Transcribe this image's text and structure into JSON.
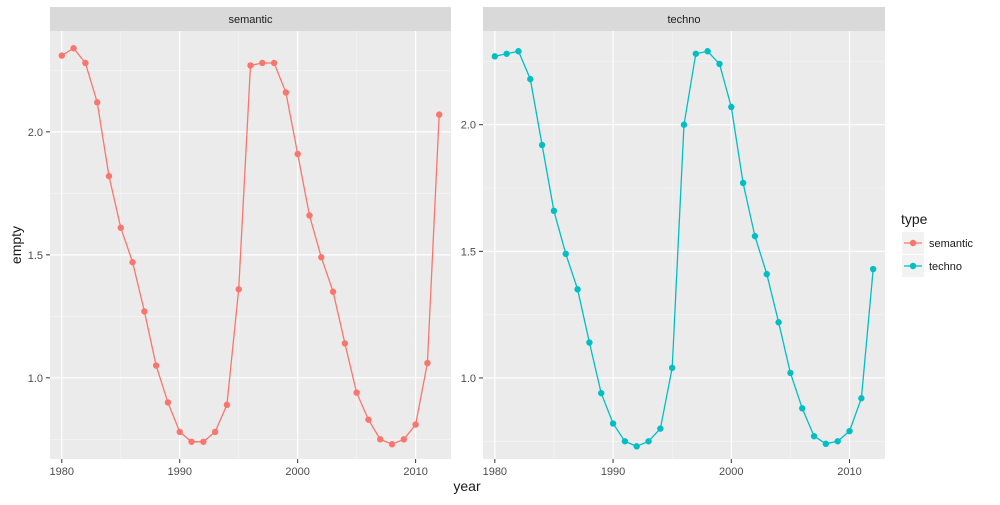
{
  "chart_data": {
    "type": "line",
    "facet": "type",
    "xlabel": "year",
    "ylabel": "empty",
    "xlim": [
      1979,
      2013
    ],
    "xticks": [
      1980,
      1990,
      2000,
      2010
    ],
    "grid": true,
    "legend": {
      "title": "type",
      "position": "right"
    },
    "panels": [
      {
        "title": "semantic",
        "color": "#F8766D",
        "ylim": [
          0.67,
          2.41
        ],
        "yticks": [
          1.0,
          1.5,
          2.0
        ],
        "x": [
          1980,
          1981,
          1982,
          1983,
          1984,
          1985,
          1986,
          1987,
          1988,
          1989,
          1990,
          1991,
          1992,
          1993,
          1994,
          1995,
          1996,
          1997,
          1998,
          1999,
          2000,
          2001,
          2002,
          2003,
          2004,
          2005,
          2006,
          2007,
          2008,
          2009,
          2010,
          2011,
          2012
        ],
        "values": [
          2.31,
          2.34,
          2.28,
          2.12,
          1.82,
          1.61,
          1.47,
          1.27,
          1.05,
          0.9,
          0.78,
          0.74,
          0.74,
          0.78,
          0.89,
          1.36,
          2.27,
          2.28,
          2.28,
          2.16,
          1.91,
          1.66,
          1.49,
          1.35,
          1.14,
          0.94,
          0.83,
          0.75,
          0.73,
          0.75,
          0.81,
          1.06,
          2.07
        ]
      },
      {
        "title": "techno",
        "color": "#00BFC4",
        "ylim": [
          0.68,
          2.37
        ],
        "yticks": [
          1.0,
          1.5,
          2.0
        ],
        "x": [
          1980,
          1981,
          1982,
          1983,
          1984,
          1985,
          1986,
          1987,
          1988,
          1989,
          1990,
          1991,
          1992,
          1993,
          1994,
          1995,
          1996,
          1997,
          1998,
          1999,
          2000,
          2001,
          2002,
          2003,
          2004,
          2005,
          2006,
          2007,
          2008,
          2009,
          2010,
          2011,
          2012
        ],
        "values": [
          2.27,
          2.28,
          2.29,
          2.18,
          1.92,
          1.66,
          1.49,
          1.35,
          1.14,
          0.94,
          0.82,
          0.75,
          0.73,
          0.75,
          0.8,
          1.04,
          2.0,
          2.28,
          2.29,
          2.24,
          2.07,
          1.77,
          1.56,
          1.41,
          1.22,
          1.02,
          0.88,
          0.77,
          0.74,
          0.75,
          0.79,
          0.92,
          1.43
        ]
      }
    ],
    "legend_items": [
      {
        "name": "semantic",
        "color": "#F8766D"
      },
      {
        "name": "techno",
        "color": "#00BFC4"
      }
    ]
  }
}
